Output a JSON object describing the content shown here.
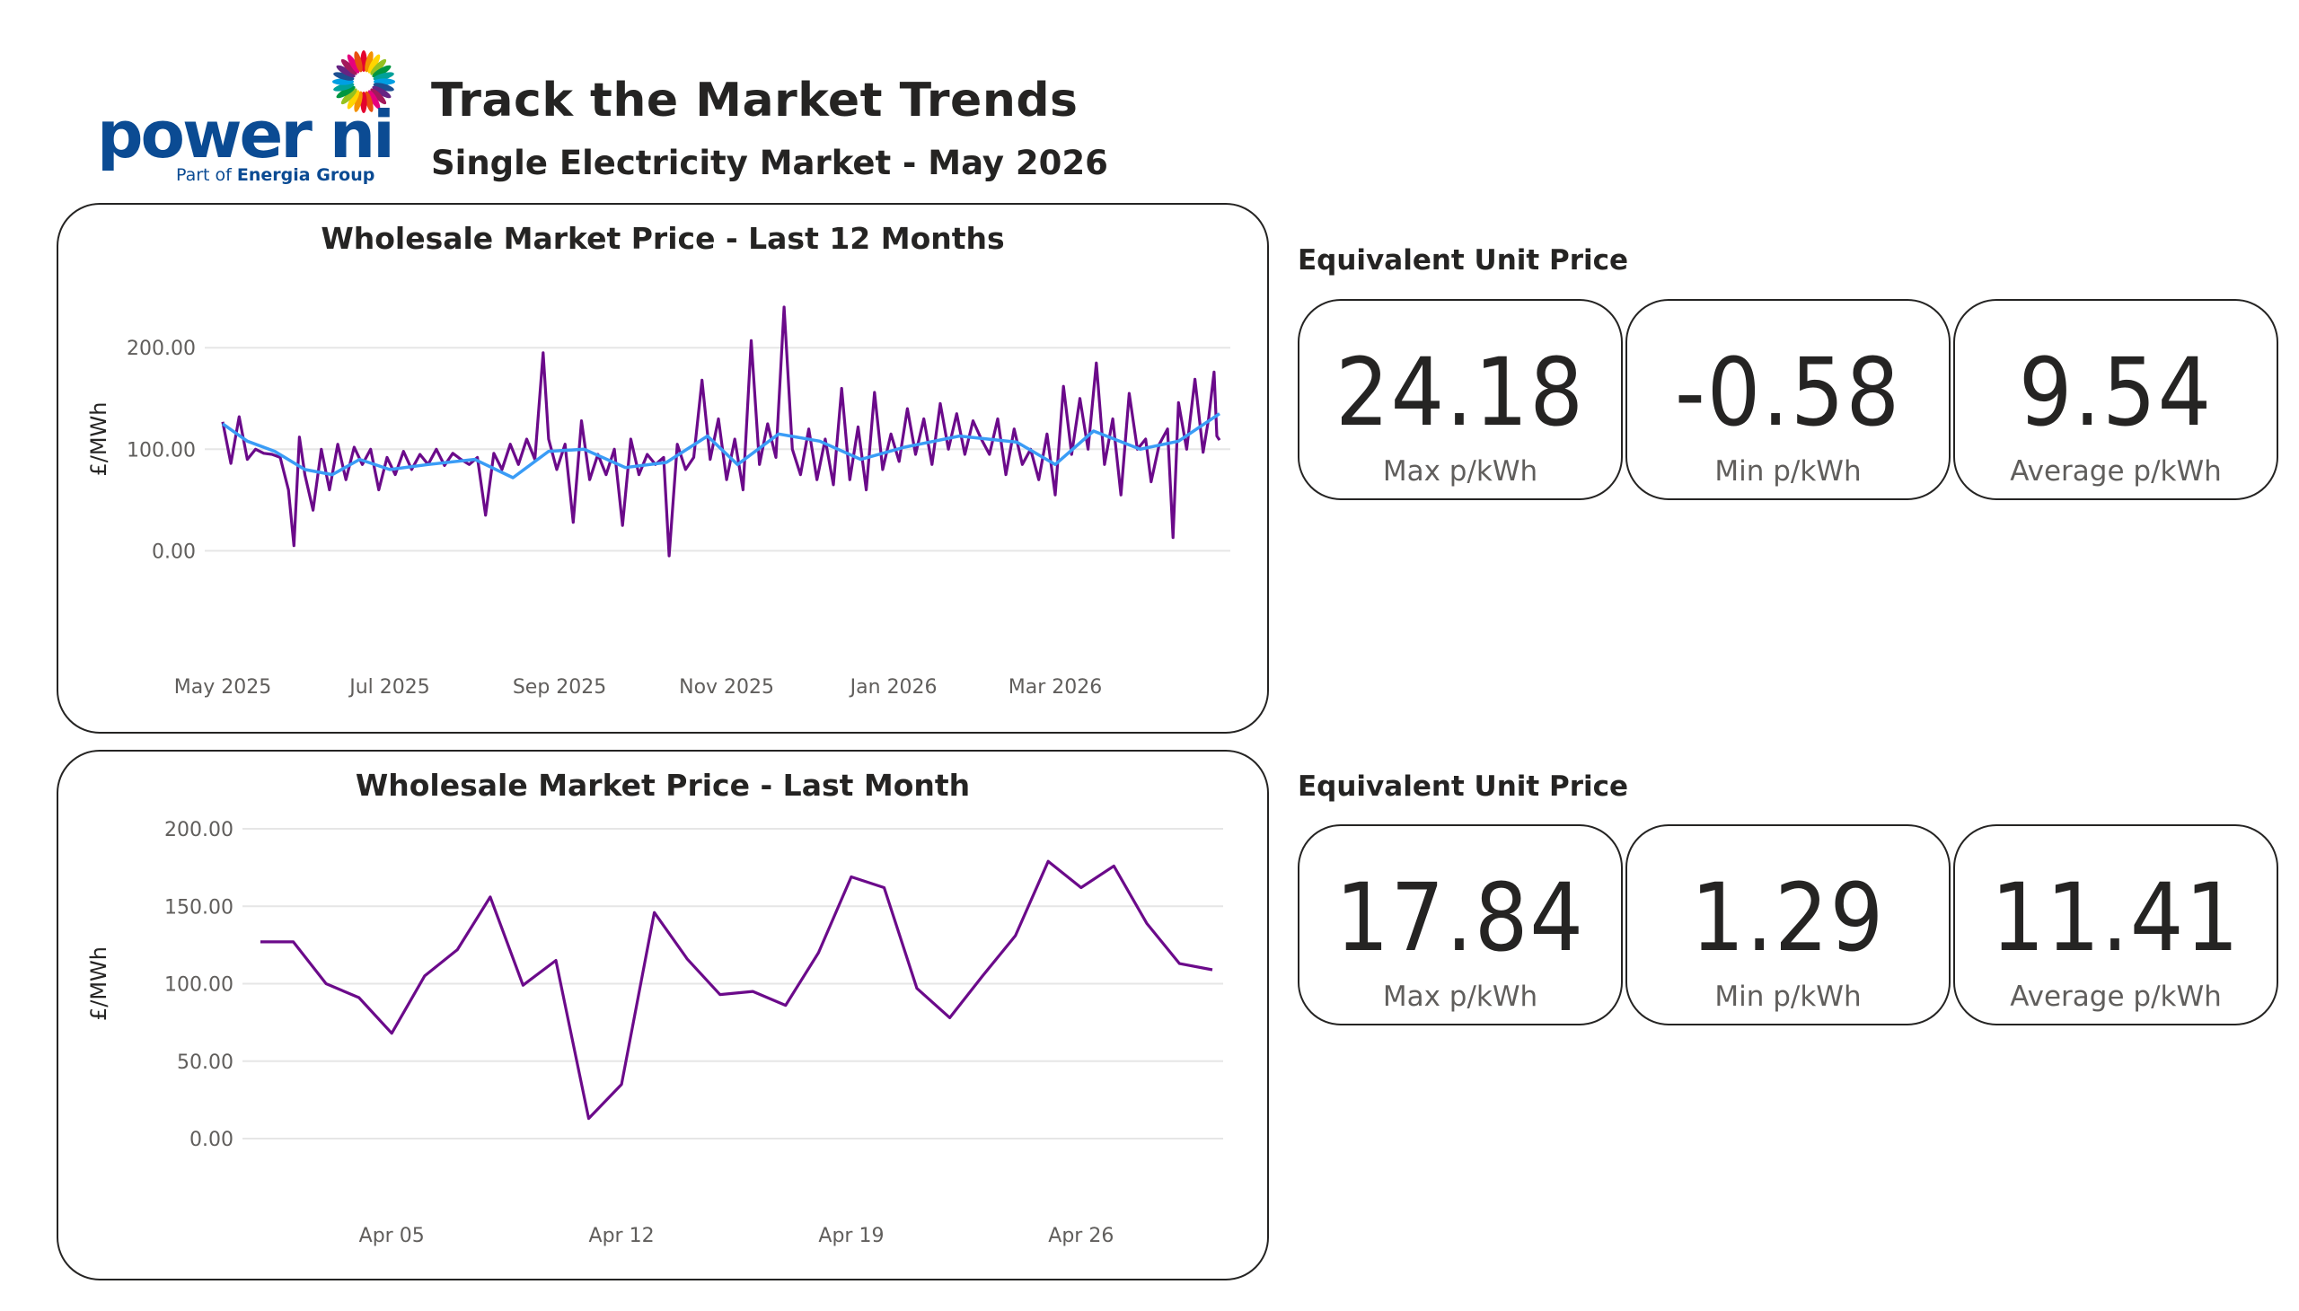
{
  "logo": {
    "word": "power ni",
    "sub_prefix": "Part of ",
    "sub_brand": "Energia Group"
  },
  "header": {
    "title": "Track the Market Trends",
    "subtitle": "Single Electricity Market - May 2026"
  },
  "colors": {
    "primary": "#6b0a8a",
    "average": "#3a9cf6",
    "border": "#252423",
    "grid": "#e6e6e6"
  },
  "kpi_sections": [
    {
      "label": "Equivalent Unit Price",
      "cards": [
        {
          "value": "24.18",
          "label": "Max p/kWh"
        },
        {
          "value": "-0.58",
          "label": "Min p/kWh"
        },
        {
          "value": "9.54",
          "label": "Average p/kWh"
        }
      ]
    },
    {
      "label": "Equivalent Unit Price",
      "cards": [
        {
          "value": "17.84",
          "label": "Max p/kWh"
        },
        {
          "value": "1.29",
          "label": "Min p/kWh"
        },
        {
          "value": "11.41",
          "label": "Average p/kWh"
        }
      ]
    }
  ],
  "chart_data": [
    {
      "type": "line",
      "title": "Wholesale Market Price - Last 12 Months",
      "xlabel": "",
      "ylabel": "£/MWh",
      "ylim": [
        -20,
        240
      ],
      "yticks": [
        0,
        100,
        200
      ],
      "ytick_labels": [
        "0.00",
        "100.00",
        "200.00"
      ],
      "x_start": "2025-05-01",
      "x_end": "2026-04-30",
      "xticks": [
        "2025-05-01",
        "2025-07-01",
        "2025-09-01",
        "2025-11-01",
        "2026-01-01",
        "2026-03-01"
      ],
      "xtick_labels": [
        "May 2025",
        "Jul 2025",
        "Sep 2025",
        "Nov 2025",
        "Jan 2026",
        "Mar 2026"
      ],
      "grid": true,
      "series": [
        {
          "role": "daily",
          "points": [
            [
              "2025-05-01",
              127
            ],
            [
              "2025-05-04",
              86
            ],
            [
              "2025-05-07",
              132
            ],
            [
              "2025-05-10",
              90
            ],
            [
              "2025-05-13",
              100
            ],
            [
              "2025-05-16",
              96
            ],
            [
              "2025-05-19",
              95
            ],
            [
              "2025-05-22",
              92
            ],
            [
              "2025-05-25",
              60
            ],
            [
              "2025-05-27",
              5
            ],
            [
              "2025-05-29",
              112
            ],
            [
              "2025-05-31",
              75
            ],
            [
              "2025-06-03",
              40
            ],
            [
              "2025-06-06",
              100
            ],
            [
              "2025-06-09",
              60
            ],
            [
              "2025-06-12",
              105
            ],
            [
              "2025-06-15",
              70
            ],
            [
              "2025-06-18",
              102
            ],
            [
              "2025-06-21",
              85
            ],
            [
              "2025-06-24",
              100
            ],
            [
              "2025-06-27",
              60
            ],
            [
              "2025-06-30",
              92
            ],
            [
              "2025-07-03",
              75
            ],
            [
              "2025-07-06",
              98
            ],
            [
              "2025-07-09",
              80
            ],
            [
              "2025-07-12",
              95
            ],
            [
              "2025-07-15",
              85
            ],
            [
              "2025-07-18",
              100
            ],
            [
              "2025-07-21",
              84
            ],
            [
              "2025-07-24",
              96
            ],
            [
              "2025-07-27",
              90
            ],
            [
              "2025-07-30",
              85
            ],
            [
              "2025-08-02",
              92
            ],
            [
              "2025-08-05",
              35
            ],
            [
              "2025-08-08",
              96
            ],
            [
              "2025-08-11",
              80
            ],
            [
              "2025-08-14",
              105
            ],
            [
              "2025-08-17",
              85
            ],
            [
              "2025-08-20",
              110
            ],
            [
              "2025-08-23",
              90
            ],
            [
              "2025-08-26",
              195
            ],
            [
              "2025-08-28",
              110
            ],
            [
              "2025-08-31",
              80
            ],
            [
              "2025-09-03",
              105
            ],
            [
              "2025-09-06",
              28
            ],
            [
              "2025-09-09",
              128
            ],
            [
              "2025-09-12",
              70
            ],
            [
              "2025-09-15",
              95
            ],
            [
              "2025-09-18",
              75
            ],
            [
              "2025-09-21",
              100
            ],
            [
              "2025-09-24",
              25
            ],
            [
              "2025-09-27",
              110
            ],
            [
              "2025-09-30",
              75
            ],
            [
              "2025-10-03",
              95
            ],
            [
              "2025-10-06",
              85
            ],
            [
              "2025-10-09",
              92
            ],
            [
              "2025-10-11",
              -5
            ],
            [
              "2025-10-14",
              105
            ],
            [
              "2025-10-17",
              80
            ],
            [
              "2025-10-20",
              92
            ],
            [
              "2025-10-23",
              168
            ],
            [
              "2025-10-26",
              90
            ],
            [
              "2025-10-29",
              130
            ],
            [
              "2025-11-01",
              70
            ],
            [
              "2025-11-04",
              110
            ],
            [
              "2025-11-07",
              60
            ],
            [
              "2025-11-10",
              207
            ],
            [
              "2025-11-13",
              85
            ],
            [
              "2025-11-16",
              125
            ],
            [
              "2025-11-19",
              92
            ],
            [
              "2025-11-22",
              240
            ],
            [
              "2025-11-25",
              100
            ],
            [
              "2025-11-28",
              75
            ],
            [
              "2025-12-01",
              120
            ],
            [
              "2025-12-04",
              70
            ],
            [
              "2025-12-07",
              110
            ],
            [
              "2025-12-10",
              65
            ],
            [
              "2025-12-13",
              160
            ],
            [
              "2025-12-16",
              70
            ],
            [
              "2025-12-19",
              122
            ],
            [
              "2025-12-22",
              60
            ],
            [
              "2025-12-25",
              156
            ],
            [
              "2025-12-28",
              80
            ],
            [
              "2025-12-31",
              115
            ],
            [
              "2026-01-03",
              88
            ],
            [
              "2026-01-06",
              140
            ],
            [
              "2026-01-09",
              95
            ],
            [
              "2026-01-12",
              130
            ],
            [
              "2026-01-15",
              85
            ],
            [
              "2026-01-18",
              145
            ],
            [
              "2026-01-21",
              100
            ],
            [
              "2026-01-24",
              135
            ],
            [
              "2026-01-27",
              95
            ],
            [
              "2026-01-30",
              128
            ],
            [
              "2026-02-02",
              110
            ],
            [
              "2026-02-05",
              95
            ],
            [
              "2026-02-08",
              130
            ],
            [
              "2026-02-11",
              75
            ],
            [
              "2026-02-14",
              120
            ],
            [
              "2026-02-17",
              85
            ],
            [
              "2026-02-20",
              100
            ],
            [
              "2026-02-23",
              70
            ],
            [
              "2026-02-26",
              115
            ],
            [
              "2026-03-01",
              55
            ],
            [
              "2026-03-04",
              162
            ],
            [
              "2026-03-07",
              95
            ],
            [
              "2026-03-10",
              150
            ],
            [
              "2026-03-13",
              100
            ],
            [
              "2026-03-16",
              185
            ],
            [
              "2026-03-19",
              85
            ],
            [
              "2026-03-22",
              130
            ],
            [
              "2026-03-25",
              55
            ],
            [
              "2026-03-28",
              155
            ],
            [
              "2026-03-31",
              100
            ],
            [
              "2026-04-03",
              110
            ],
            [
              "2026-04-05",
              68
            ],
            [
              "2026-04-08",
              105
            ],
            [
              "2026-04-11",
              120
            ],
            [
              "2026-04-13",
              13
            ],
            [
              "2026-04-15",
              146
            ],
            [
              "2026-04-18",
              100
            ],
            [
              "2026-04-21",
              169
            ],
            [
              "2026-04-24",
              97
            ],
            [
              "2026-04-26",
              130
            ],
            [
              "2026-04-28",
              176
            ],
            [
              "2026-04-29",
              113
            ],
            [
              "2026-04-30",
              109
            ]
          ]
        },
        {
          "role": "rolling average",
          "points": [
            [
              "2025-05-01",
              125
            ],
            [
              "2025-05-10",
              108
            ],
            [
              "2025-05-20",
              98
            ],
            [
              "2025-05-31",
              80
            ],
            [
              "2025-06-10",
              75
            ],
            [
              "2025-06-20",
              90
            ],
            [
              "2025-07-01",
              80
            ],
            [
              "2025-07-15",
              85
            ],
            [
              "2025-08-01",
              90
            ],
            [
              "2025-08-15",
              72
            ],
            [
              "2025-08-28",
              98
            ],
            [
              "2025-09-10",
              100
            ],
            [
              "2025-09-25",
              82
            ],
            [
              "2025-10-10",
              87
            ],
            [
              "2025-10-25",
              113
            ],
            [
              "2025-11-05",
              85
            ],
            [
              "2025-11-20",
              115
            ],
            [
              "2025-12-05",
              108
            ],
            [
              "2025-12-20",
              90
            ],
            [
              "2026-01-05",
              102
            ],
            [
              "2026-01-25",
              113
            ],
            [
              "2026-02-15",
              107
            ],
            [
              "2026-03-01",
              85
            ],
            [
              "2026-03-15",
              118
            ],
            [
              "2026-04-01",
              100
            ],
            [
              "2026-04-15",
              108
            ],
            [
              "2026-04-30",
              135
            ]
          ]
        }
      ]
    },
    {
      "type": "line",
      "title": "Wholesale Market Price - Last Month",
      "xlabel": "",
      "ylabel": "£/MWh",
      "ylim": [
        0,
        200
      ],
      "yticks": [
        0,
        50,
        100,
        150,
        200
      ],
      "ytick_labels": [
        "0.00",
        "50.00",
        "100.00",
        "150.00",
        "200.00"
      ],
      "x_start": "2026-04-01",
      "x_end": "2026-04-30",
      "xticks": [
        "2026-04-05",
        "2026-04-12",
        "2026-04-19",
        "2026-04-26"
      ],
      "xtick_labels": [
        "Apr 05",
        "Apr 12",
        "Apr 19",
        "Apr 26"
      ],
      "grid": true,
      "series": [
        {
          "points": [
            [
              "2026-04-01",
              127
            ],
            [
              "2026-04-02",
              127
            ],
            [
              "2026-04-03",
              100
            ],
            [
              "2026-04-04",
              91
            ],
            [
              "2026-04-05",
              68
            ],
            [
              "2026-04-06",
              105
            ],
            [
              "2026-04-07",
              122
            ],
            [
              "2026-04-08",
              156
            ],
            [
              "2026-04-09",
              99
            ],
            [
              "2026-04-10",
              115
            ],
            [
              "2026-04-11",
              13
            ],
            [
              "2026-04-12",
              35
            ],
            [
              "2026-04-13",
              146
            ],
            [
              "2026-04-14",
              116
            ],
            [
              "2026-04-15",
              93
            ],
            [
              "2026-04-16",
              95
            ],
            [
              "2026-04-17",
              86
            ],
            [
              "2026-04-18",
              120
            ],
            [
              "2026-04-19",
              169
            ],
            [
              "2026-04-20",
              162
            ],
            [
              "2026-04-21",
              97
            ],
            [
              "2026-04-22",
              78
            ],
            [
              "2026-04-23",
              105
            ],
            [
              "2026-04-24",
              131
            ],
            [
              "2026-04-25",
              179
            ],
            [
              "2026-04-26",
              162
            ],
            [
              "2026-04-27",
              176
            ],
            [
              "2026-04-28",
              139
            ],
            [
              "2026-04-29",
              113
            ],
            [
              "2026-04-30",
              109
            ]
          ]
        }
      ]
    }
  ]
}
